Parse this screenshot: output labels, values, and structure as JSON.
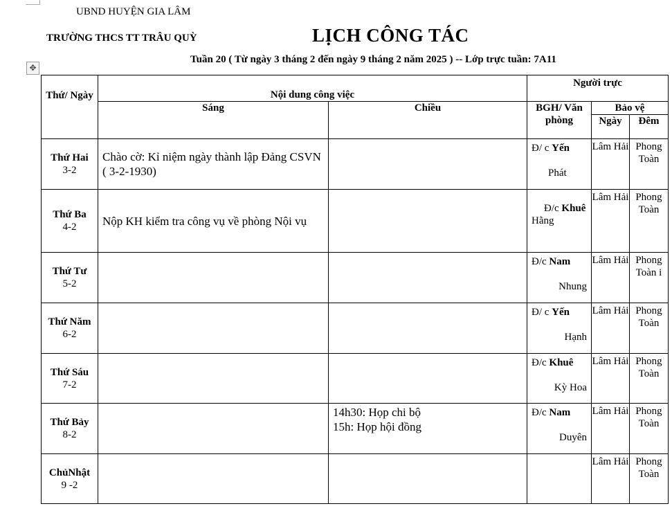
{
  "header": {
    "org_line1": "UBND HUYỆN GIA LÂM",
    "org_line2": "TRƯỜNG THCS TT TRÂU QUỲ",
    "title": "LỊCH CÔNG TÁC",
    "week_line": "Tuần 20 ( Từ ngày 3 tháng 2 đến ngày 9  tháng 2  năm 2025 ) -- Lớp trực tuần: 7A11"
  },
  "columns": {
    "day": "Thứ/ Ngày",
    "content": "Nội dung công việc",
    "morning": "Sáng",
    "afternoon": "Chiều",
    "on_duty": "Người trực",
    "bgh": "BGH/ Văn phòng",
    "guard": "Bảo vệ",
    "guard_day": "Ngày",
    "guard_night": "Đêm"
  },
  "rows": [
    {
      "day": "Thứ Hai",
      "date": "3-2",
      "morning": "Chào cờ: Kỉ niệm ngày thành lập Đảng CSVN ( 3-2-1930)",
      "afternoon": "",
      "bgh_prefix": "Đ/ c ",
      "bgh_name": "Yến",
      "office": "Phát",
      "guard_day": "Lâm Hải",
      "guard_night": "Phong Toàn"
    },
    {
      "day": "Thứ Ba",
      "date": "4-2",
      "morning": "Nộp KH kiểm tra công vụ về phòng Nội vụ",
      "afternoon": "",
      "bgh_prefix": "Đ/c ",
      "bgh_name": "Khuê",
      "office": "Hằng",
      "guard_day": "Lâm Hải",
      "guard_night": "Phong Toàn"
    },
    {
      "day": "Thứ Tư",
      "date": "5-2",
      "morning": "",
      "afternoon": "",
      "bgh_prefix": "Đ/c ",
      "bgh_name": "Nam",
      "office": "Nhung",
      "guard_day": "Lâm Hải",
      "guard_night": "Phong Toàn i"
    },
    {
      "day": "Thứ Năm",
      "date": "6-2",
      "morning": "",
      "afternoon": "",
      "bgh_prefix": "Đ/ c ",
      "bgh_name": "Yến",
      "office": "Hạnh",
      "guard_day": "Lâm Hải",
      "guard_night": "Phong Toàn"
    },
    {
      "day": "Thứ Sáu",
      "date": "7-2",
      "morning": "",
      "afternoon": "",
      "bgh_prefix": "Đ/c ",
      "bgh_name": "Khuê",
      "office": "Kỳ Hoa",
      "guard_day": "Lâm Hải",
      "guard_night": "Phong Toàn"
    },
    {
      "day": "Thứ Bảy",
      "date": "8-2",
      "morning": "",
      "afternoon": "14h30: Họp chi bộ\n15h: Họp hội đồng",
      "bgh_prefix": "Đ/c ",
      "bgh_name": "Nam",
      "office": "Duyên",
      "guard_day": "Lâm Hải",
      "guard_night": "Phong Toàn"
    },
    {
      "day": "ChủNhật",
      "date": "9 -2",
      "morning": "",
      "afternoon": "",
      "bgh_prefix": "",
      "bgh_name": "",
      "office": "",
      "guard_day": "Lâm Hải",
      "guard_night": "Phong Toàn"
    }
  ]
}
